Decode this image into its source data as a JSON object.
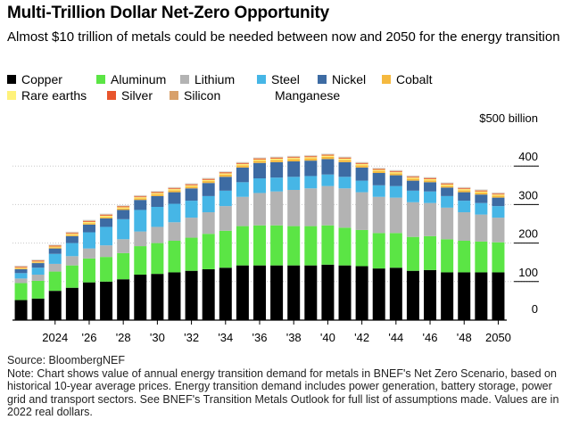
{
  "title": "Multi-Trillion Dollar Net-Zero Opportunity",
  "subtitle": "Almost $10 trillion of metals could be needed between now and 2050 for the energy transition",
  "chart_data": {
    "type": "bar",
    "stacked": true,
    "categories": [
      "2022",
      "2023",
      "2024",
      "2025",
      "2026",
      "2027",
      "2028",
      "2029",
      "2030",
      "2031",
      "2032",
      "2033",
      "2034",
      "2035",
      "2036",
      "2037",
      "2038",
      "2039",
      "2040",
      "2041",
      "2042",
      "2043",
      "2044",
      "2045",
      "2046",
      "2047",
      "2048",
      "2049",
      "2050"
    ],
    "x_tick_labels": [
      {
        "index": 2,
        "label": "2024"
      },
      {
        "index": 4,
        "label": "'26"
      },
      {
        "index": 6,
        "label": "'28"
      },
      {
        "index": 8,
        "label": "'30"
      },
      {
        "index": 10,
        "label": "'32"
      },
      {
        "index": 12,
        "label": "'34"
      },
      {
        "index": 14,
        "label": "'36"
      },
      {
        "index": 16,
        "label": "'38"
      },
      {
        "index": 18,
        "label": "'40"
      },
      {
        "index": 20,
        "label": "'42"
      },
      {
        "index": 22,
        "label": "'44"
      },
      {
        "index": 24,
        "label": "'46"
      },
      {
        "index": 26,
        "label": "'48"
      },
      {
        "index": 28,
        "label": "2050"
      }
    ],
    "y_ticks": [
      {
        "value": 0,
        "label": "0"
      },
      {
        "value": 100,
        "label": "100"
      },
      {
        "value": 200,
        "label": "200"
      },
      {
        "value": 300,
        "label": "300"
      },
      {
        "value": 400,
        "label": "400"
      },
      {
        "value": 500,
        "label": "$500 billion"
      }
    ],
    "ylim": [
      0,
      500
    ],
    "series": [
      {
        "name": "Copper",
        "color": "#000000",
        "values": [
          52,
          56,
          76,
          84,
          98,
          100,
          106,
          118,
          120,
          124,
          128,
          132,
          136,
          142,
          142,
          142,
          142,
          142,
          144,
          142,
          140,
          134,
          136,
          128,
          130,
          124,
          124,
          124,
          124
        ]
      },
      {
        "name": "Aluminum",
        "color": "#5be545",
        "values": [
          44,
          46,
          50,
          58,
          62,
          64,
          68,
          74,
          80,
          82,
          86,
          92,
          96,
          102,
          104,
          104,
          102,
          102,
          102,
          98,
          94,
          92,
          90,
          88,
          88,
          86,
          82,
          80,
          78
        ]
      },
      {
        "name": "Lithium",
        "color": "#b3b3b3",
        "values": [
          12,
          16,
          20,
          24,
          26,
          30,
          36,
          38,
          42,
          48,
          52,
          56,
          64,
          76,
          84,
          88,
          94,
          98,
          102,
          102,
          98,
          94,
          92,
          90,
          86,
          82,
          74,
          70,
          64
        ]
      },
      {
        "name": "Steel",
        "color": "#46b6e6",
        "values": [
          14,
          18,
          26,
          34,
          42,
          48,
          52,
          56,
          52,
          48,
          44,
          42,
          40,
          38,
          38,
          36,
          34,
          32,
          30,
          30,
          30,
          30,
          30,
          30,
          30,
          30,
          30,
          30,
          30
        ]
      },
      {
        "name": "Nickel",
        "color": "#3d6ba3",
        "values": [
          10,
          12,
          14,
          18,
          20,
          22,
          24,
          26,
          28,
          30,
          32,
          34,
          36,
          38,
          40,
          40,
          40,
          40,
          40,
          38,
          34,
          32,
          28,
          26,
          24,
          22,
          22,
          22,
          22
        ]
      },
      {
        "name": "Cobalt",
        "color": "#f5b93f",
        "values": [
          2,
          2,
          3,
          3,
          4,
          4,
          4,
          4,
          5,
          5,
          5,
          5,
          6,
          6,
          6,
          6,
          6,
          6,
          6,
          6,
          6,
          5,
          5,
          5,
          5,
          5,
          5,
          5,
          5
        ]
      },
      {
        "name": "Rare earths",
        "color": "#fff27a",
        "values": [
          2,
          2,
          2,
          3,
          3,
          3,
          3,
          3,
          3,
          3,
          3,
          3,
          3,
          3,
          3,
          3,
          3,
          3,
          3,
          3,
          3,
          3,
          3,
          3,
          3,
          3,
          3,
          3,
          3
        ]
      },
      {
        "name": "Silver",
        "color": "#e8552d",
        "values": [
          2,
          2,
          2,
          2,
          2,
          2,
          2,
          2,
          2,
          2,
          2,
          2,
          2,
          2,
          2,
          2,
          2,
          2,
          2,
          2,
          2,
          2,
          2,
          2,
          2,
          2,
          2,
          2,
          2
        ]
      },
      {
        "name": "Silicon",
        "color": "#d8a06a",
        "values": [
          2,
          2,
          2,
          2,
          2,
          2,
          2,
          2,
          2,
          2,
          2,
          2,
          2,
          2,
          2,
          2,
          2,
          2,
          2,
          2,
          2,
          2,
          2,
          2,
          2,
          2,
          2,
          2,
          2
        ]
      },
      {
        "name": "Manganese",
        "color": "#ffffff",
        "values": [
          1,
          1,
          1,
          1,
          1,
          1,
          1,
          1,
          1,
          1,
          1,
          1,
          1,
          1,
          1,
          1,
          1,
          1,
          1,
          1,
          1,
          1,
          1,
          1,
          1,
          1,
          1,
          1,
          1
        ]
      }
    ]
  },
  "footer": {
    "source": "Source: BloombergNEF",
    "note": "Note: Chart shows value of annual energy transition demand for metals in BNEF's Net Zero Scenario, based on historical 10-year average prices. Energy transition demand includes power generation, battery storage, power grid and transport sectors. See BNEF's Transition Metals Outlook for full list of assumptions made. Values are in 2022 real dollars."
  }
}
